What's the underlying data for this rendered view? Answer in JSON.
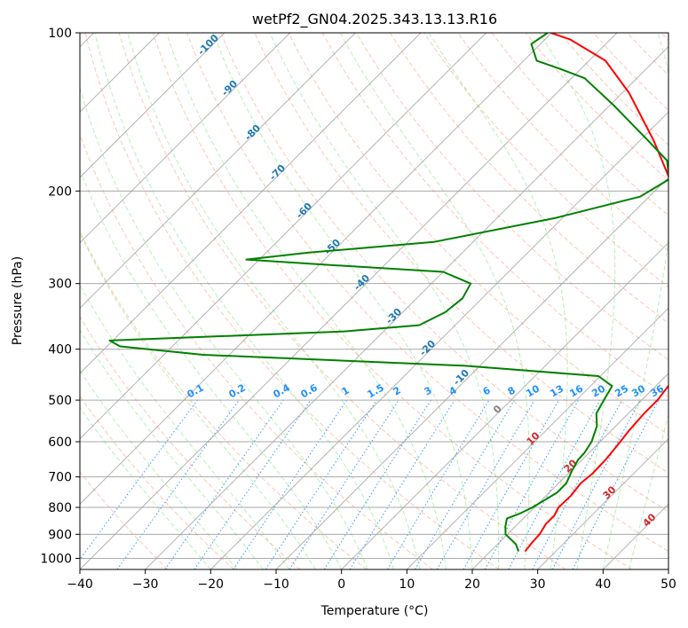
{
  "chart_data": {
    "type": "line",
    "title": "wetPf2_GN04.2025.343.13.13.R16",
    "xlabel": "Temperature (°C)",
    "ylabel": "Pressure (hPa)",
    "xlim": [
      -40,
      50
    ],
    "ylim": [
      1050,
      100
    ],
    "y_scale": "log",
    "x_ticks": [
      -40,
      -30,
      -20,
      -10,
      0,
      10,
      20,
      30,
      40,
      50
    ],
    "y_ticks": [
      100,
      200,
      300,
      400,
      500,
      600,
      700,
      800,
      900,
      1000
    ],
    "grid": true,
    "skew": true,
    "series": [
      {
        "color": "#ff0000",
        "points": [
          [
            25.3,
            970
          ],
          [
            25.0,
            930
          ],
          [
            24.9,
            900
          ],
          [
            24.3,
            860
          ],
          [
            24.3,
            830
          ],
          [
            23.7,
            800
          ],
          [
            23.8,
            760
          ],
          [
            23.4,
            720
          ],
          [
            23.7,
            690
          ],
          [
            23.6,
            650
          ],
          [
            23.2,
            610
          ],
          [
            22.7,
            570
          ],
          [
            22.4,
            530
          ],
          [
            22.4,
            500
          ],
          [
            21.9,
            470
          ],
          [
            21.4,
            440
          ],
          [
            20.7,
            420
          ],
          [
            20.4,
            400
          ],
          [
            20.4,
            390
          ],
          [
            19.3,
            375
          ],
          [
            17.4,
            350
          ],
          [
            14.7,
            320
          ],
          [
            12.2,
            300
          ],
          [
            7.4,
            270
          ],
          [
            2.3,
            240
          ],
          [
            -2.7,
            215
          ],
          [
            -9.5,
            190
          ],
          [
            -18.0,
            160
          ],
          [
            -29.0,
            130
          ],
          [
            -37.5,
            113
          ],
          [
            -46.1,
            103
          ],
          [
            -50.1,
            100
          ]
        ]
      },
      {
        "color": "#008000",
        "points": [
          [
            24.3,
            970
          ],
          [
            22.8,
            940
          ],
          [
            19.7,
            900
          ],
          [
            18.5,
            870
          ],
          [
            17.5,
            840
          ],
          [
            18.8,
            820
          ],
          [
            19.7,
            800
          ],
          [
            20.3,
            780
          ],
          [
            21.2,
            750
          ],
          [
            21.2,
            720
          ],
          [
            20.1,
            680
          ],
          [
            19.4,
            650
          ],
          [
            19.3,
            630
          ],
          [
            18.7,
            600
          ],
          [
            17.1,
            560
          ],
          [
            15.1,
            530
          ],
          [
            14.2,
            500
          ],
          [
            13.3,
            470
          ],
          [
            9.7,
            450
          ],
          [
            -12.5,
            430
          ],
          [
            -54.0,
            410
          ],
          [
            -68.0,
            395
          ],
          [
            -70.5,
            385
          ],
          [
            -36.0,
            370
          ],
          [
            -25.5,
            360
          ],
          [
            -23.5,
            340
          ],
          [
            -23.0,
            320
          ],
          [
            -24.0,
            300
          ],
          [
            -30.0,
            285
          ],
          [
            -47.5,
            277
          ],
          [
            -62.0,
            270
          ],
          [
            -53.5,
            262
          ],
          [
            -36.0,
            250
          ],
          [
            -21.0,
            225
          ],
          [
            -11.4,
            205
          ],
          [
            -9.6,
            190
          ],
          [
            -12.8,
            175
          ],
          [
            -18.9,
            160
          ],
          [
            -29.6,
            137
          ],
          [
            -38.0,
            122
          ],
          [
            -43.3,
            117
          ],
          [
            -48.0,
            113
          ],
          [
            -51.4,
            105
          ],
          [
            -50.6,
            100
          ]
        ]
      }
    ],
    "background_lines": {
      "dry_adiabats_label_values": [
        "-100",
        "-90",
        "-80",
        "-70",
        "-60",
        "-50",
        "-40",
        "-30",
        "-20",
        "-10",
        "0",
        "10",
        "20",
        "30",
        "40"
      ],
      "mixing_ratio_label_values": [
        "0.1",
        "0.2",
        "0.4",
        "0.6",
        "1",
        "1.5",
        "2",
        "3",
        "4",
        "6",
        "8",
        "10",
        "13",
        "16",
        "20",
        "25",
        "30",
        "36"
      ],
      "moist_adiabat_label_values": [
        "10",
        "20",
        "30",
        "40"
      ],
      "zero_label": "0"
    },
    "colors": {
      "temperature": "#ff0000",
      "dewpoint": "#008000",
      "dry_adiabat": "#ffa07a",
      "moist_adiabat": "#90ee90",
      "mixing_ratio": "#1e90ff",
      "isotherm": "#a0a0a0",
      "isobar": "#a0a0a0",
      "dry_label": "#1f77b4",
      "mr_label": "#1e90ff",
      "moist_label": "#d62728"
    }
  }
}
